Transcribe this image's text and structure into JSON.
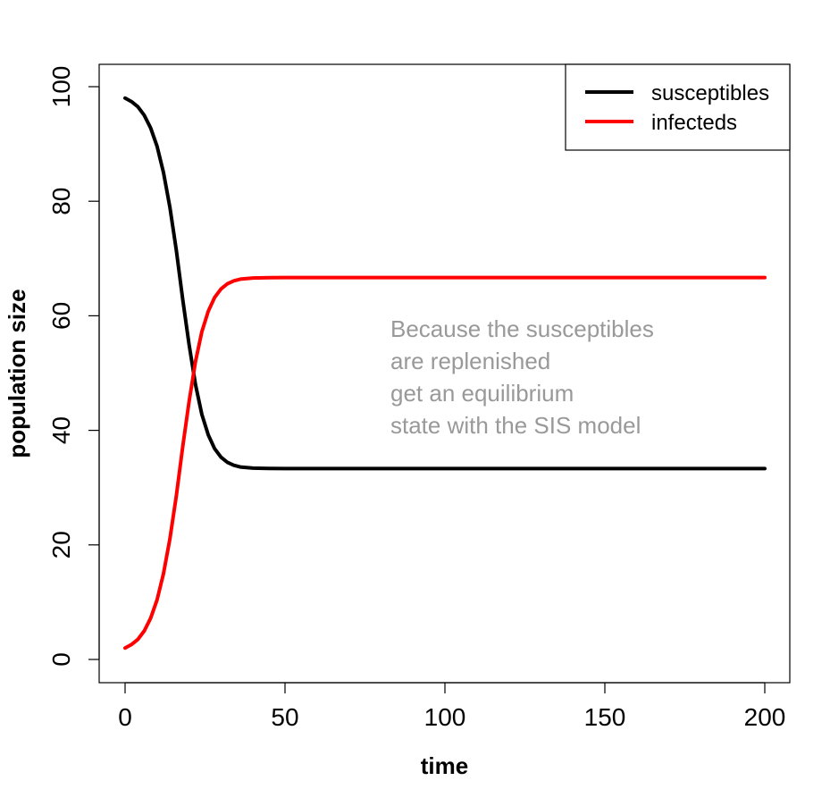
{
  "chart_data": {
    "type": "line",
    "title": "",
    "xlabel": "time",
    "ylabel": "population size",
    "xlim": [
      0,
      200
    ],
    "ylim": [
      0,
      100
    ],
    "x_ticks": [
      0,
      50,
      100,
      150,
      200
    ],
    "y_ticks": [
      0,
      20,
      40,
      60,
      80,
      100
    ],
    "x_tick_labels": [
      "0",
      "50",
      "100",
      "150",
      "200"
    ],
    "y_tick_labels": [
      "0",
      "20",
      "40",
      "60",
      "80",
      "100"
    ],
    "grid": false,
    "legend_position": "top-right",
    "x": [
      0,
      2,
      4,
      6,
      8,
      10,
      12,
      14,
      16,
      18,
      20,
      22,
      24,
      26,
      28,
      30,
      32,
      34,
      36,
      38,
      40,
      45,
      50,
      60,
      80,
      100,
      150,
      200
    ],
    "series": [
      {
        "name": "susceptibles",
        "color": "#000000",
        "values": [
          98.0,
          97.4,
          96.5,
          95.0,
          92.8,
          89.6,
          85.0,
          79.0,
          71.5,
          63.0,
          55.0,
          48.0,
          42.8,
          39.2,
          36.8,
          35.3,
          34.4,
          33.9,
          33.6,
          33.5,
          33.4,
          33.35,
          33.33,
          33.33,
          33.33,
          33.33,
          33.33,
          33.33
        ]
      },
      {
        "name": "infecteds",
        "color": "#ff0000",
        "values": [
          2.0,
          2.6,
          3.5,
          5.0,
          7.2,
          10.4,
          15.0,
          21.0,
          28.5,
          37.0,
          45.0,
          52.0,
          57.2,
          60.8,
          63.2,
          64.7,
          65.6,
          66.1,
          66.4,
          66.5,
          66.6,
          66.65,
          66.67,
          66.67,
          66.67,
          66.67,
          66.67,
          66.67
        ]
      }
    ],
    "annotation_lines": [
      "Because the susceptibles",
      "are replenished",
      "get an equilibrium",
      "state with the SIS model"
    ],
    "annotation_color": "#999999"
  }
}
